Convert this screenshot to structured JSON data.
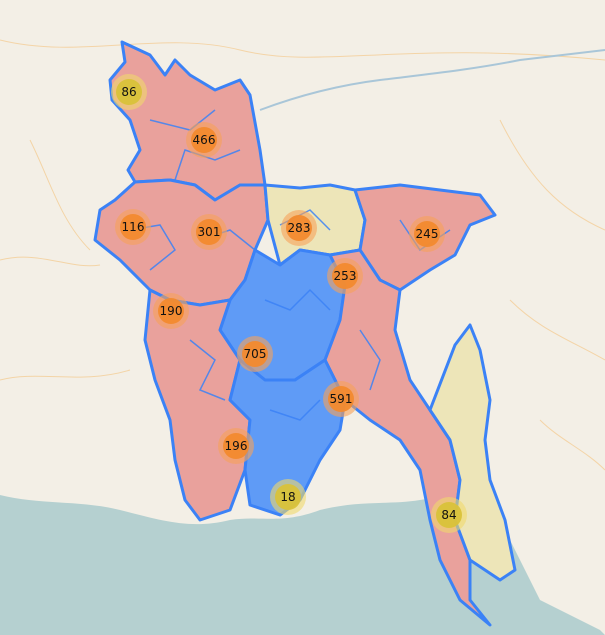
{
  "map": {
    "colors": {
      "land": "#f3efe6",
      "sea": "#b5d0d0",
      "border_primary": "#3b82f6",
      "fill_red": "#e9a19c",
      "fill_blue": "#5f9bf6",
      "fill_yellow": "#ede5b8",
      "cluster_orange_outer": "#f7a15a",
      "cluster_orange_inner": "#f28a2e",
      "cluster_yellow_outer": "#f0d86c",
      "cluster_yellow_inner": "#d9c23a"
    },
    "clusters": [
      {
        "name": "cluster-rangpur-nw",
        "count": "86",
        "size": "small"
      },
      {
        "name": "cluster-rangpur",
        "count": "466",
        "size": "medium"
      },
      {
        "name": "cluster-dinajpur-west",
        "count": "116",
        "size": "medium"
      },
      {
        "name": "cluster-bogra",
        "count": "301",
        "size": "medium"
      },
      {
        "name": "cluster-mymensingh",
        "count": "283",
        "size": "medium"
      },
      {
        "name": "cluster-sylhet",
        "count": "245",
        "size": "medium"
      },
      {
        "name": "cluster-kishoreganj",
        "count": "253",
        "size": "medium"
      },
      {
        "name": "cluster-rajshahi",
        "count": "190",
        "size": "medium"
      },
      {
        "name": "cluster-dhaka",
        "count": "705",
        "size": "medium"
      },
      {
        "name": "cluster-comilla",
        "count": "591",
        "size": "medium"
      },
      {
        "name": "cluster-khulna",
        "count": "196",
        "size": "medium"
      },
      {
        "name": "cluster-barisal-coast",
        "count": "18",
        "size": "small"
      },
      {
        "name": "cluster-coxs-bazar",
        "count": "84",
        "size": "small"
      }
    ]
  }
}
